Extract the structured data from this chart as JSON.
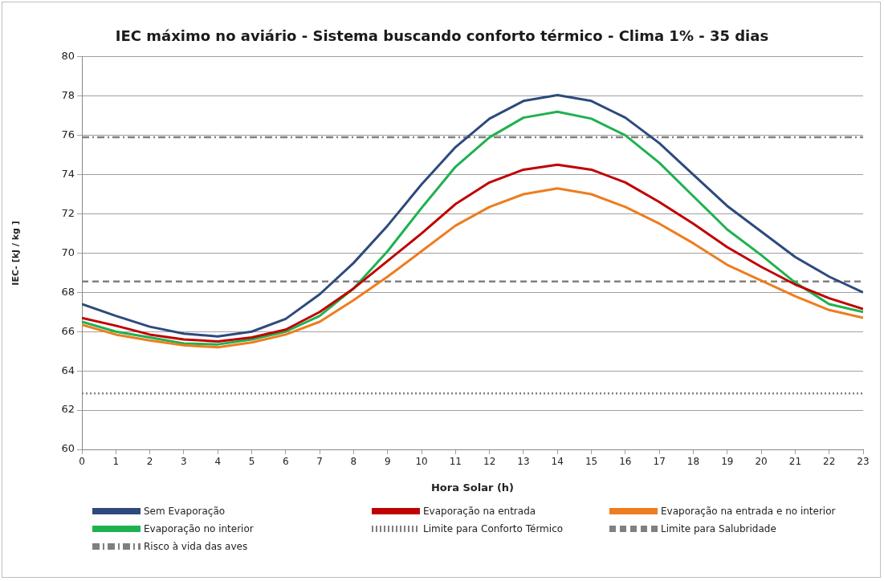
{
  "chart_data": {
    "type": "line",
    "title": "IEC máximo no aviário - Sistema buscando conforto térmico - Clima 1% - 35 dias",
    "xlabel": "Hora Solar (h)",
    "ylabel": "IEC- [kJ / kg ]",
    "x": [
      0,
      1,
      2,
      3,
      4,
      5,
      6,
      7,
      8,
      9,
      10,
      11,
      12,
      13,
      14,
      15,
      16,
      17,
      18,
      19,
      20,
      21,
      22,
      23
    ],
    "series": [
      {
        "name": "Sem Evaporação",
        "color": "#2e4a7d",
        "values": [
          67.4,
          66.8,
          66.25,
          65.9,
          65.75,
          66.0,
          66.65,
          67.9,
          69.5,
          71.4,
          73.5,
          75.4,
          76.85,
          77.75,
          78.05,
          77.75,
          76.9,
          75.6,
          74.0,
          72.4,
          71.1,
          69.8,
          68.8,
          68.0
        ]
      },
      {
        "name": "Evaporação na entrada",
        "color": "#c00000",
        "values": [
          66.7,
          66.3,
          65.85,
          65.6,
          65.5,
          65.7,
          66.1,
          67.0,
          68.2,
          69.6,
          71.0,
          72.5,
          73.6,
          74.25,
          74.5,
          74.25,
          73.6,
          72.6,
          71.5,
          70.3,
          69.3,
          68.4,
          67.7,
          67.15
        ]
      },
      {
        "name": "Evaporação na entrada e no interior",
        "color": "#ed7d1f",
        "values": [
          66.35,
          65.85,
          65.55,
          65.3,
          65.2,
          65.45,
          65.85,
          66.5,
          67.6,
          68.8,
          70.1,
          71.4,
          72.35,
          73.0,
          73.3,
          73.0,
          72.35,
          71.5,
          70.5,
          69.4,
          68.6,
          67.8,
          67.1,
          66.7
        ]
      },
      {
        "name": "Evaporação no interior",
        "color": "#1fb14f",
        "values": [
          66.5,
          66.0,
          65.7,
          65.4,
          65.35,
          65.6,
          66.0,
          66.8,
          68.2,
          70.1,
          72.3,
          74.4,
          75.9,
          76.9,
          77.2,
          76.85,
          76.0,
          74.6,
          72.9,
          71.2,
          69.9,
          68.5,
          67.4,
          67.0
        ]
      }
    ],
    "ref_lines": [
      {
        "axis": "y",
        "value": 62.85,
        "label": "Limite para Conforto Térmico",
        "color": "#808080",
        "line_style": "dotted"
      },
      {
        "axis": "y",
        "value": 68.55,
        "label": "Limite para Salubridade",
        "color": "#808080",
        "line_style": "dashed"
      },
      {
        "axis": "y",
        "value": 75.9,
        "label": "Risco à vida das aves",
        "color": "#808080",
        "line_style": "dashdot"
      }
    ],
    "xlim": [
      0,
      23
    ],
    "xticks": [
      0,
      1,
      2,
      3,
      4,
      5,
      6,
      7,
      8,
      9,
      10,
      11,
      12,
      13,
      14,
      15,
      16,
      17,
      18,
      19,
      20,
      21,
      22,
      23
    ],
    "ylim": [
      60,
      80
    ],
    "yticks": [
      60,
      62,
      64,
      66,
      68,
      70,
      72,
      74,
      76,
      78,
      80
    ],
    "grid": "y",
    "legend": "bottom",
    "marker": "none",
    "line_style": "solid"
  }
}
